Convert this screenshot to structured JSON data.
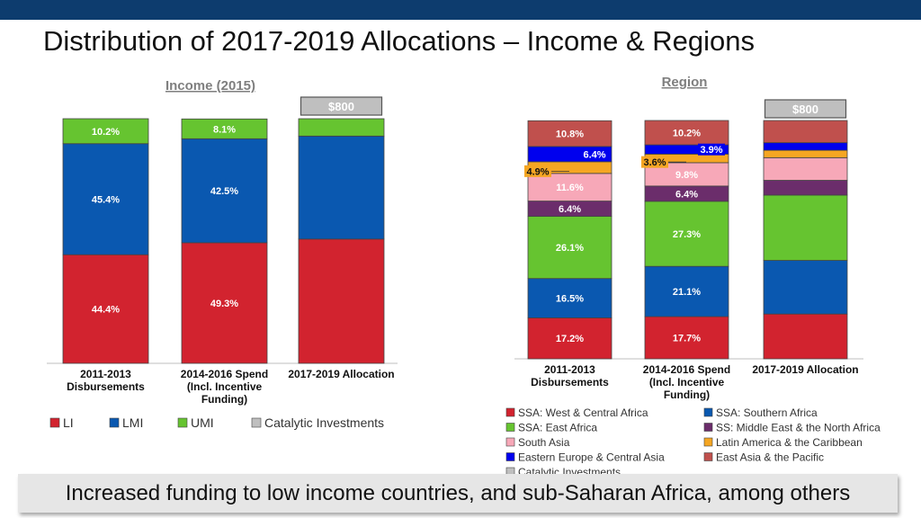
{
  "header": {
    "title": "Distribution of 2017-2019 Allocations – Income & Regions"
  },
  "footer": {
    "text": "Increased funding to low income countries, and sub-Saharan Africa, among others"
  },
  "colors": {
    "LI": "#d2232f",
    "LMI": "#0a58b0",
    "UMI": "#66c430",
    "Catalytic": "#bfbfbf",
    "SSA_West": "#d2232f",
    "SSA_Southern": "#0a58b0",
    "SSA_East": "#66c430",
    "MENA": "#6b2d6b",
    "South_Asia": "#f7a8b8",
    "LAC": "#f5a623",
    "EECA": "#0000ee",
    "EAP": "#c0504d"
  },
  "chart_data": [
    {
      "type": "bar",
      "stacked": true,
      "title": "Income (2015)",
      "callout": "$800",
      "categories": [
        "2011-2013 Disbursements",
        "2014-2016 Spend (Incl. Incentive Funding)",
        "2017-2019 Allocation"
      ],
      "category_lines": [
        [
          "2011-2013",
          "Disbursements"
        ],
        [
          "2014-2016 Spend",
          "(Incl. Incentive",
          "Funding)"
        ],
        [
          "2017-2019 Allocation"
        ]
      ],
      "series": [
        {
          "name": "LI",
          "values": [
            44.4,
            49.3,
            50.8
          ],
          "labels": [
            "44.4%",
            "49.3%",
            ""
          ]
        },
        {
          "name": "LMI",
          "values": [
            45.4,
            42.5,
            42.1
          ],
          "labels": [
            "45.4%",
            "42.5%",
            ""
          ]
        },
        {
          "name": "UMI",
          "values": [
            10.2,
            8.1,
            7.1
          ],
          "labels": [
            "10.2%",
            "8.1%",
            ""
          ]
        },
        {
          "name": "Catalytic Investments",
          "values": [
            0,
            0,
            0
          ],
          "labels": [
            "",
            "",
            ""
          ]
        }
      ],
      "ylim": [
        0,
        100
      ],
      "legend": [
        "LI",
        "LMI",
        "UMI",
        "Catalytic Investments"
      ],
      "legend_position": "bottom"
    },
    {
      "type": "bar",
      "stacked": true,
      "title": "Region",
      "callout": "$800",
      "categories": [
        "2011-2013 Disbursements",
        "2014-2016 Spend (Incl. Incentive Funding)",
        "2017-2019 Allocation"
      ],
      "category_lines": [
        [
          "2011-2013",
          "Disbursements"
        ],
        [
          "2014-2016 Spend",
          "(Incl. Incentive",
          "Funding)"
        ],
        [
          "2017-2019 Allocation"
        ]
      ],
      "series": [
        {
          "name": "SSA: West & Central Africa",
          "values": [
            17.2,
            17.7,
            18.8
          ],
          "labels": [
            "17.2%",
            "17.7%",
            ""
          ]
        },
        {
          "name": "SSA: Southern Africa",
          "values": [
            16.5,
            21.1,
            22.5
          ],
          "labels": [
            "16.5%",
            "21.1%",
            ""
          ]
        },
        {
          "name": "SSA: East Africa",
          "values": [
            26.1,
            27.3,
            27.4
          ],
          "labels": [
            "26.1%",
            "27.3%",
            ""
          ]
        },
        {
          "name": "SS: Middle East & the North Africa",
          "values": [
            6.4,
            6.4,
            6.2
          ],
          "labels": [
            "6.4%",
            "6.4%",
            ""
          ]
        },
        {
          "name": "South Asia",
          "values": [
            11.6,
            9.8,
            9.5
          ],
          "labels": [
            "11.6%",
            "9.8%",
            ""
          ]
        },
        {
          "name": "Latin America & the Caribbean",
          "values": [
            4.9,
            3.6,
            3.1
          ],
          "labels": [
            "4.9%",
            "3.6%",
            ""
          ]
        },
        {
          "name": "Eastern Europe & Central Asia",
          "values": [
            6.4,
            3.9,
            3.2
          ],
          "labels": [
            "6.4%",
            "3.9%",
            ""
          ]
        },
        {
          "name": "East Asia & the Pacific",
          "values": [
            10.8,
            10.2,
            9.3
          ],
          "labels": [
            "10.8%",
            "10.2%",
            ""
          ]
        },
        {
          "name": "Catalytic Investments",
          "values": [
            0,
            0,
            0
          ],
          "labels": [
            "",
            "",
            ""
          ]
        }
      ],
      "ylim": [
        0,
        100
      ],
      "legend": [
        "SSA: West & Central Africa",
        "SSA: Southern Africa",
        "SSA: East Africa",
        "SS: Middle East & the North Africa",
        "South Asia",
        "Latin America & the Caribbean",
        "Eastern Europe & Central Asia",
        "East Asia & the Pacific",
        "Catalytic Investments"
      ],
      "legend_position": "bottom"
    }
  ]
}
